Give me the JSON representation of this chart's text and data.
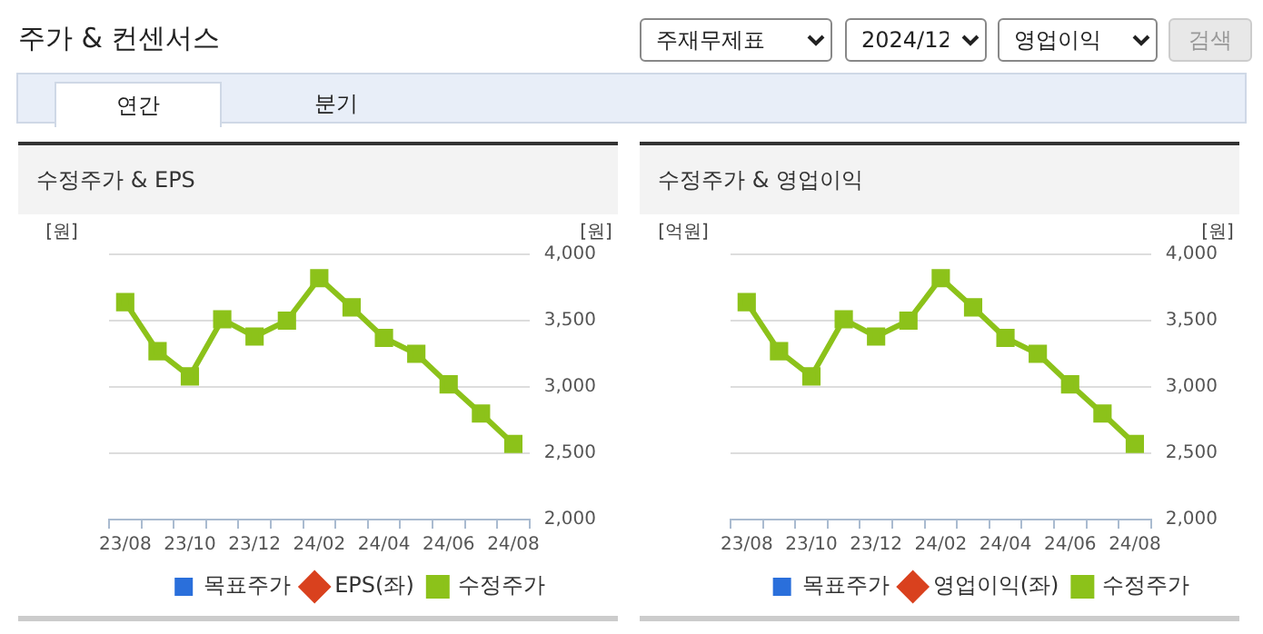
{
  "chart_data": [
    {
      "type": "other",
      "title": "주가 & 컨센서스",
      "annotations": [
        "주재무제표",
        "2024/12",
        "영업이익",
        "검색",
        "연간",
        "분기"
      ]
    },
    {
      "type": "line",
      "title": "수정주가 & EPS",
      "ylabel": "[원]",
      "y2label": "[원]",
      "categories": [
        "23/08",
        null,
        "23/10",
        null,
        "23/12",
        null,
        "24/02",
        null,
        "24/04",
        null,
        "24/06",
        null,
        "24/08"
      ],
      "series": [
        {
          "name": "목표주가",
          "type": "bar",
          "color": "#2a6fdb",
          "values": [
            null,
            null,
            null,
            null,
            null,
            null,
            null,
            null,
            null,
            null,
            null,
            null,
            null
          ]
        },
        {
          "name": "EPS(좌)",
          "type": "line",
          "marker": "diamond",
          "color": "#d9411e",
          "values": [
            null,
            null,
            null,
            null,
            null,
            null,
            null,
            null,
            null,
            null,
            null,
            null,
            null
          ]
        },
        {
          "name": "수정주가",
          "type": "line",
          "marker": "square",
          "axis": "y2",
          "color": "#8cc21a",
          "values": [
            3640,
            3270,
            3080,
            3510,
            3380,
            3500,
            3820,
            3600,
            3370,
            3250,
            3020,
            2800,
            2570
          ]
        }
      ],
      "y2lim": [
        2000,
        4000
      ],
      "y2ticks": [
        {
          "value": 2000,
          "label": "2,000"
        },
        {
          "value": 2500,
          "label": "2,500"
        },
        {
          "value": 3000,
          "label": "3,000"
        },
        {
          "value": 3500,
          "label": "3,500"
        },
        {
          "value": 4000,
          "label": "4,000"
        }
      ],
      "grid": "y",
      "legend": "bottom"
    },
    {
      "type": "line",
      "title": "수정주가 & 영업이익",
      "ylabel": "[억원]",
      "y2label": "[원]",
      "categories": [
        "23/08",
        null,
        "23/10",
        null,
        "23/12",
        null,
        "24/02",
        null,
        "24/04",
        null,
        "24/06",
        null,
        "24/08"
      ],
      "series": [
        {
          "name": "목표주가",
          "type": "bar",
          "color": "#2a6fdb",
          "values": [
            null,
            null,
            null,
            null,
            null,
            null,
            null,
            null,
            null,
            null,
            null,
            null,
            null
          ]
        },
        {
          "name": "영업이익(좌)",
          "type": "line",
          "marker": "diamond",
          "color": "#d9411e",
          "values": [
            null,
            null,
            null,
            null,
            null,
            null,
            null,
            null,
            null,
            null,
            null,
            null,
            null
          ]
        },
        {
          "name": "수정주가",
          "type": "line",
          "marker": "square",
          "axis": "y2",
          "color": "#8cc21a",
          "values": [
            3640,
            3270,
            3080,
            3510,
            3380,
            3500,
            3820,
            3600,
            3370,
            3250,
            3020,
            2800,
            2570
          ]
        }
      ],
      "y2lim": [
        2000,
        4000
      ],
      "y2ticks": [
        {
          "value": 2000,
          "label": "2,000"
        },
        {
          "value": 2500,
          "label": "2,500"
        },
        {
          "value": 3000,
          "label": "3,000"
        },
        {
          "value": 3500,
          "label": "3,500"
        },
        {
          "value": 4000,
          "label": "4,000"
        }
      ],
      "grid": "y",
      "legend": "bottom"
    }
  ]
}
